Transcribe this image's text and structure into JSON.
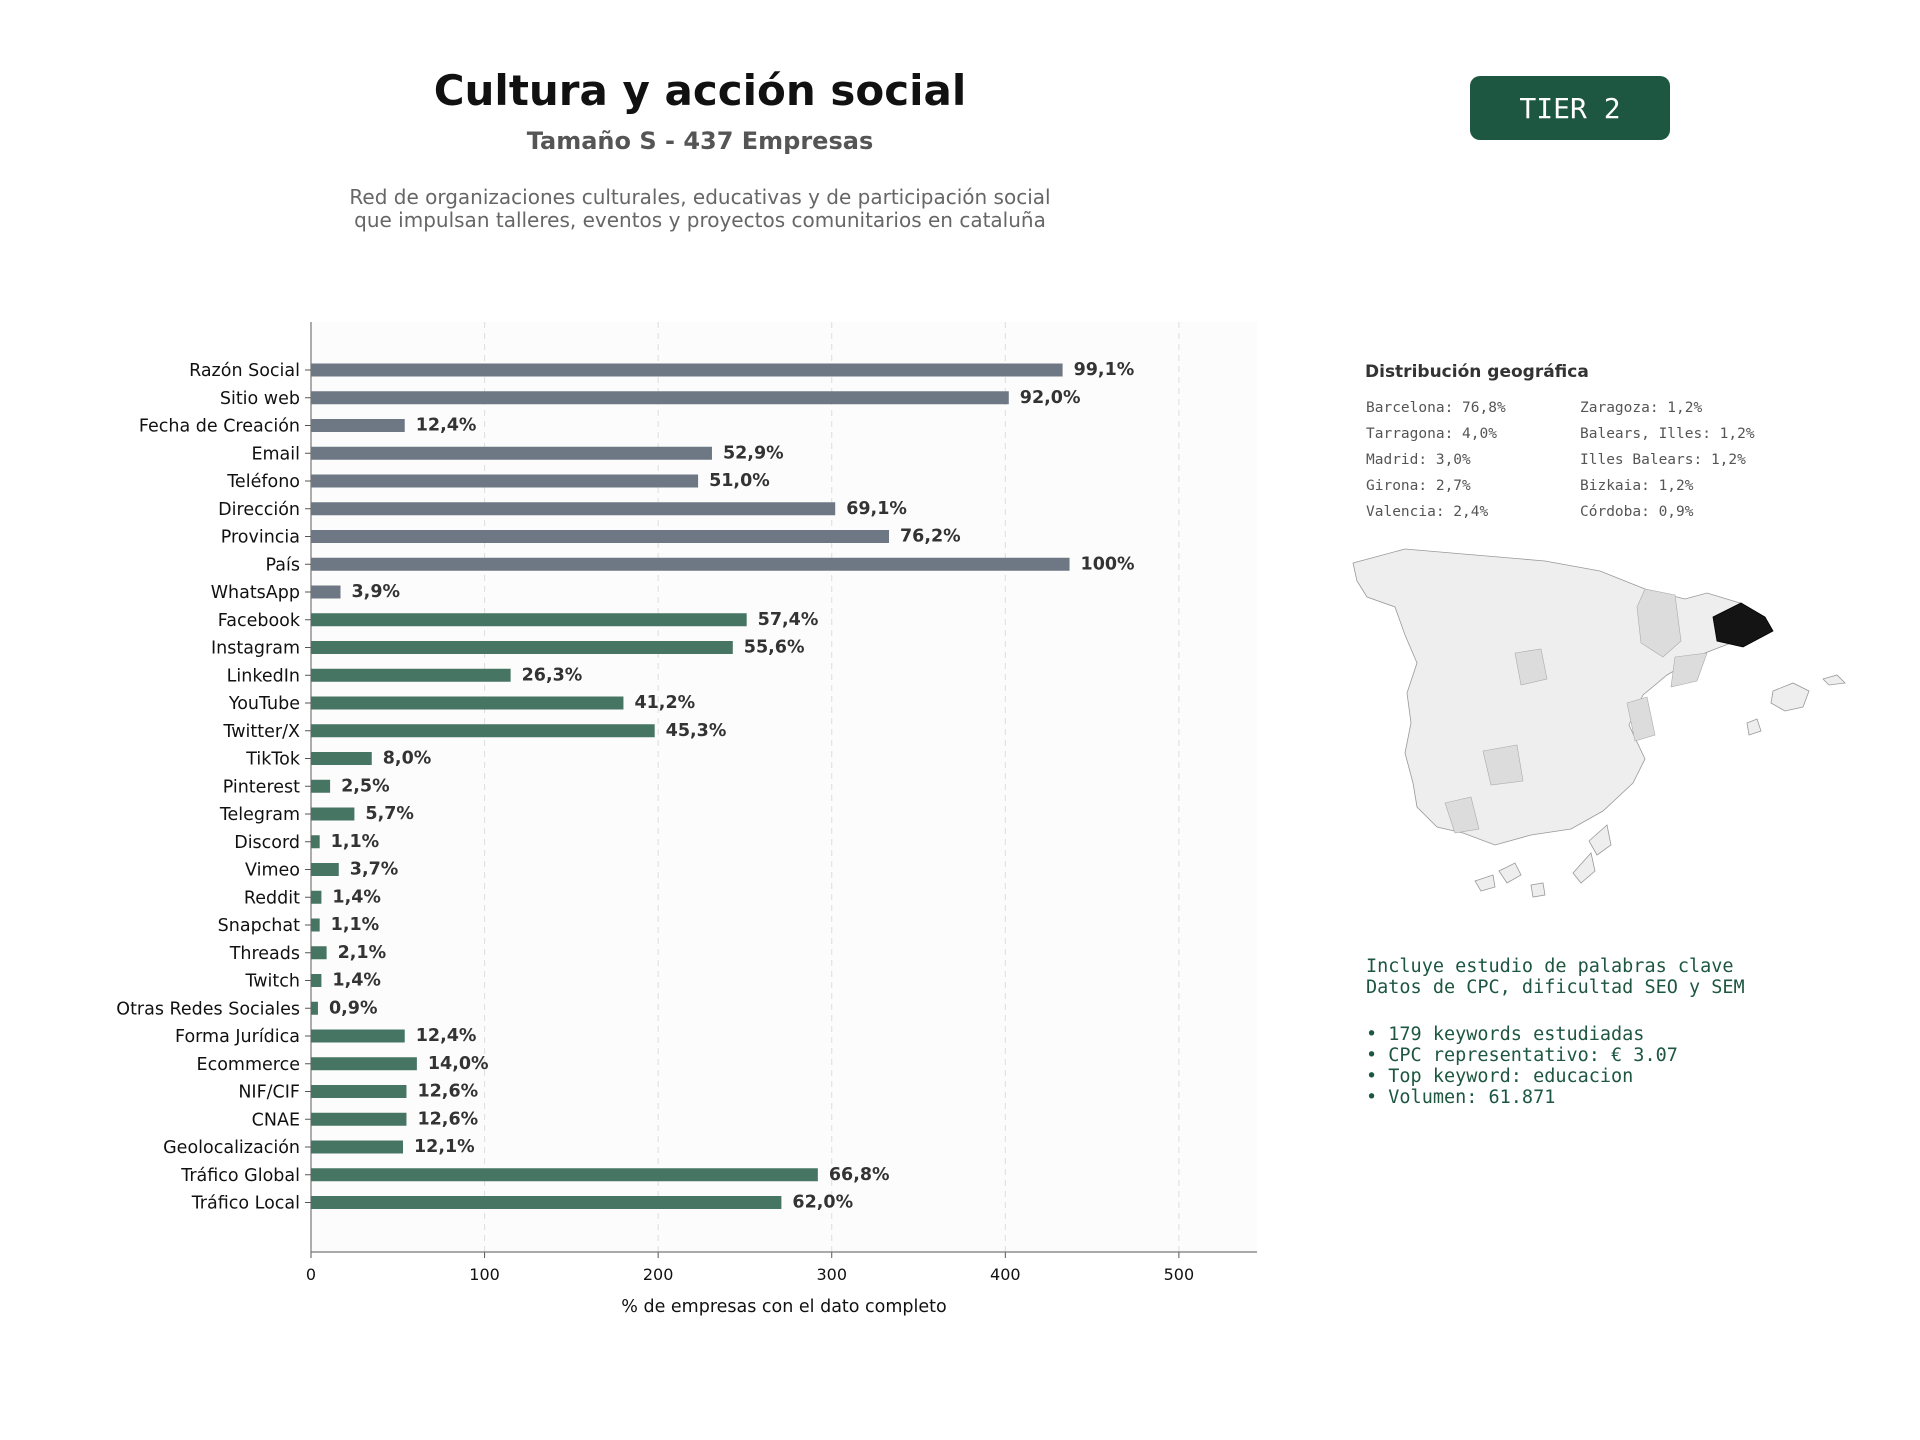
{
  "header": {
    "title": "Cultura y acción social",
    "subtitle": "Tamaño S - 437 Empresas",
    "description_lines": [
      "Red de organizaciones culturales, educativas y de participación social",
      "que impulsan talleres, eventos y proyectos comunitarios en cataluña"
    ],
    "tier_badge": "TIER 2"
  },
  "colors": {
    "gray_bar": "#6e7884",
    "green_bar": "#477563",
    "badge": "#1d5641",
    "highlight": "#111111"
  },
  "chart_data": {
    "type": "bar",
    "orientation": "horizontal",
    "xlabel": "% de empresas con el dato completo",
    "ylabel": "",
    "xlim": [
      0,
      545
    ],
    "xticks": [
      0,
      100,
      200,
      300,
      400,
      500
    ],
    "grid": "vertical dashed",
    "categories": [
      "Razón Social",
      "Sitio web",
      "Fecha de Creación",
      "Email",
      "Teléfono",
      "Dirección",
      "Provincia",
      "País",
      "WhatsApp",
      "Facebook",
      "Instagram",
      "LinkedIn",
      "YouTube",
      "Twitter/X",
      "TikTok",
      "Pinterest",
      "Telegram",
      "Discord",
      "Vimeo",
      "Reddit",
      "Snapchat",
      "Threads",
      "Twitch",
      "Otras Redes Sociales",
      "Forma Jurídica",
      "Ecommerce",
      "NIF/CIF",
      "CNAE",
      "Geolocalización",
      "Tráfico Global",
      "Tráfico Local"
    ],
    "values": [
      433,
      402,
      54,
      231,
      223,
      302,
      333,
      437,
      17,
      251,
      243,
      115,
      180,
      198,
      35,
      11,
      25,
      5,
      16,
      6,
      5,
      9,
      6,
      4,
      54,
      61,
      55,
      55,
      53,
      292,
      271
    ],
    "labels": [
      "99,1%",
      "92,0%",
      "12,4%",
      "52,9%",
      "51,0%",
      "69,1%",
      "76,2%",
      "100%",
      "3,9%",
      "57,4%",
      "55,6%",
      "26,3%",
      "41,2%",
      "45,3%",
      "8,0%",
      "2,5%",
      "5,7%",
      "1,1%",
      "3,7%",
      "1,4%",
      "1,1%",
      "2,1%",
      "1,4%",
      "0,9%",
      "12,4%",
      "14,0%",
      "12,6%",
      "12,6%",
      "12,1%",
      "66,8%",
      "62,0%"
    ],
    "groups": [
      "gray",
      "gray",
      "gray",
      "gray",
      "gray",
      "gray",
      "gray",
      "gray",
      "gray",
      "green",
      "green",
      "green",
      "green",
      "green",
      "green",
      "green",
      "green",
      "green",
      "green",
      "green",
      "green",
      "green",
      "green",
      "green",
      "green",
      "green",
      "green",
      "green",
      "green",
      "green",
      "green"
    ]
  },
  "geo": {
    "title": "Distribución geográfica",
    "col1": [
      "Barcelona: 76,8%",
      "Tarragona: 4,0%",
      "Madrid: 3,0%",
      "Girona: 2,7%",
      "Valencia: 2,4%"
    ],
    "col2": [
      "Zaragoza: 1,2%",
      "Balears, Illes: 1,2%",
      "Illes Balears: 1,2%",
      "Bizkaia: 1,2%",
      "Córdoba: 0,9%"
    ]
  },
  "keywords": {
    "intro_lines": [
      "Incluye estudio de palabras clave",
      "Datos de CPC, dificultad SEO y SEM"
    ],
    "bullets": [
      "• 179 keywords estudiadas",
      "• CPC representativo: € 3.07",
      "• Top keyword: educacion",
      "• Volumen: 61.871"
    ]
  }
}
